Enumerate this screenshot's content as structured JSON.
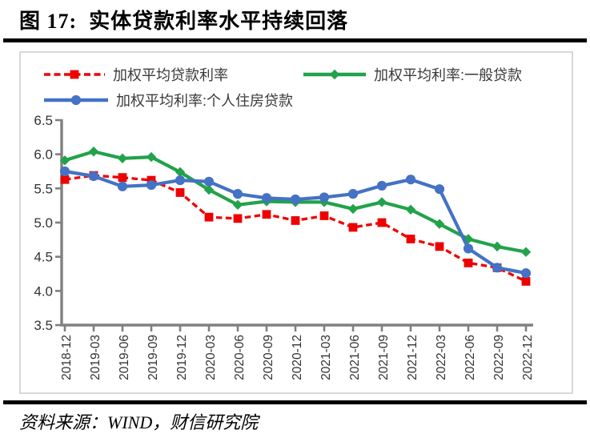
{
  "title": "图 17:  实体贷款利率水平持续回落",
  "source_note": "资料来源：WIND，财信研究院",
  "colors": {
    "series_red": "#ee0000",
    "series_green": "#22a24b",
    "series_blue": "#4472c4",
    "axis_gray": "#808080",
    "panel_border": "#d8d8d8",
    "tick_label": "#333333"
  },
  "legend": [
    {
      "label": "加权平均贷款利率",
      "marker": "square",
      "line": "dashed",
      "color": "#ee0000"
    },
    {
      "label": "加权平均利率:一般贷款",
      "marker": "diamond",
      "line": "solid",
      "color": "#22a24b"
    },
    {
      "label": "加权平均利率:个人住房贷款",
      "marker": "circle",
      "line": "solid",
      "color": "#4472c4"
    }
  ],
  "chart_data": {
    "type": "line",
    "title": "",
    "xlabel": "",
    "ylabel": "",
    "grid": false,
    "legend_position": "top",
    "ylim": [
      3.5,
      6.5
    ],
    "yticks": [
      "3.5",
      "4.0",
      "4.5",
      "5.0",
      "5.5",
      "6.0",
      "6.5"
    ],
    "x_tick_rotation": 90,
    "categories": [
      "2018-12",
      "2019-03",
      "2019-06",
      "2019-09",
      "2019-12",
      "2020-03",
      "2020-06",
      "2020-09",
      "2020-12",
      "2021-03",
      "2021-06",
      "2021-09",
      "2021-12",
      "2022-03",
      "2022-06",
      "2022-09",
      "2022-12"
    ],
    "series": [
      {
        "name": "加权平均贷款利率",
        "color": "#ee0000",
        "marker": "square",
        "line_style": "dashed",
        "values": [
          5.63,
          5.69,
          5.66,
          5.62,
          5.44,
          5.08,
          5.06,
          5.12,
          5.03,
          5.1,
          4.93,
          5.0,
          4.76,
          4.65,
          4.41,
          4.34,
          4.14
        ]
      },
      {
        "name": "加权平均利率:一般贷款",
        "color": "#22a24b",
        "marker": "diamond",
        "line_style": "solid",
        "values": [
          5.91,
          6.04,
          5.94,
          5.96,
          5.74,
          5.48,
          5.26,
          5.31,
          5.3,
          5.3,
          5.2,
          5.3,
          5.19,
          4.98,
          4.76,
          4.65,
          4.57
        ]
      },
      {
        "name": "加权平均利率:个人住房贷款",
        "color": "#4472c4",
        "marker": "circle",
        "line_style": "solid",
        "values": [
          5.75,
          5.68,
          5.53,
          5.55,
          5.62,
          5.6,
          5.42,
          5.36,
          5.34,
          5.37,
          5.42,
          5.54,
          5.63,
          5.49,
          4.62,
          4.34,
          4.26
        ]
      }
    ]
  }
}
